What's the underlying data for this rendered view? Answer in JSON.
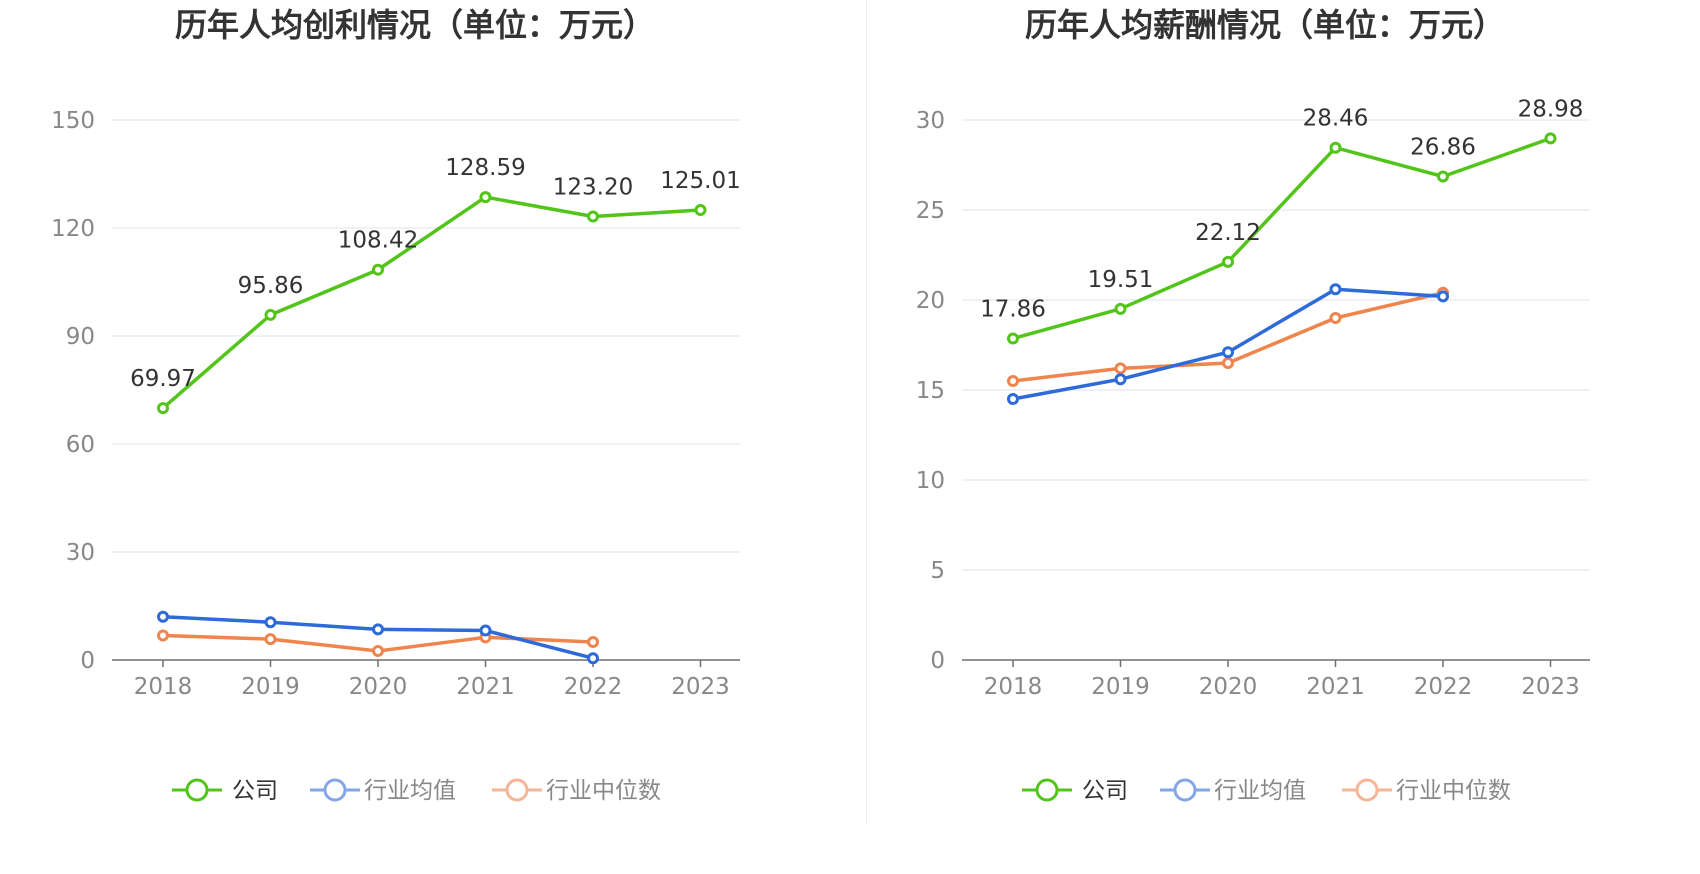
{
  "chart_data": [
    {
      "type": "line",
      "title": "历年人均创利情况（单位：万元）",
      "categories": [
        "2018",
        "2019",
        "2020",
        "2021",
        "2022",
        "2023"
      ],
      "ylim": [
        0,
        150
      ],
      "yticks": [
        0,
        30,
        60,
        90,
        120,
        150
      ],
      "grid": true,
      "legend_position": "bottom",
      "series": [
        {
          "name": "公司",
          "color": "#52c41a",
          "values": [
            69.97,
            95.86,
            108.42,
            128.59,
            123.2,
            125.01
          ],
          "labels": [
            "69.97",
            "95.86",
            "108.42",
            "128.59",
            "123.20",
            "125.01"
          ]
        },
        {
          "name": "行业均值",
          "color": "#2f6ad9",
          "values": [
            12.0,
            10.5,
            8.5,
            8.2,
            0.5,
            null
          ]
        },
        {
          "name": "行业中位数",
          "color": "#f0844d",
          "values": [
            6.8,
            5.8,
            2.5,
            6.3,
            5.0,
            null
          ]
        }
      ]
    },
    {
      "type": "line",
      "title": "历年人均薪酬情况（单位：万元）",
      "categories": [
        "2018",
        "2019",
        "2020",
        "2021",
        "2022",
        "2023"
      ],
      "ylim": [
        0,
        30
      ],
      "yticks": [
        0,
        5,
        10,
        15,
        20,
        25,
        30
      ],
      "grid": true,
      "legend_position": "bottom",
      "series": [
        {
          "name": "公司",
          "color": "#52c41a",
          "values": [
            17.86,
            19.51,
            22.12,
            28.46,
            26.86,
            28.98
          ],
          "labels": [
            "17.86",
            "19.51",
            "22.12",
            "28.46",
            "26.86",
            "28.98"
          ]
        },
        {
          "name": "行业均值",
          "color": "#2f6ad9",
          "values": [
            14.5,
            15.6,
            17.1,
            20.6,
            20.2,
            null
          ]
        },
        {
          "name": "行业中位数",
          "color": "#f0844d",
          "values": [
            15.5,
            16.2,
            16.5,
            19.0,
            20.4,
            null
          ]
        }
      ]
    }
  ]
}
